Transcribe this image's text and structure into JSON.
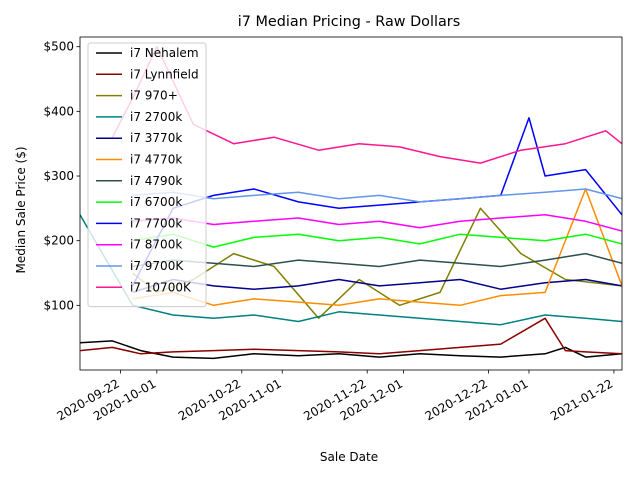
{
  "chart_data": {
    "type": "line",
    "title": "i7 Median Pricing - Raw Dollars",
    "xlabel": "Sale Date",
    "ylabel": "Median Sale Price ($)",
    "x_tick_labels": [
      "2020-09-22",
      "2020-10-01",
      "2020-10-22",
      "2020-11-01",
      "2020-11-22",
      "2020-12-01",
      "2020-12-22",
      "2021-01-01",
      "2021-01-22"
    ],
    "x_tick_dates": [
      "2020-09-22",
      "2020-10-01",
      "2020-10-22",
      "2020-11-01",
      "2020-11-22",
      "2020-12-01",
      "2020-12-22",
      "2021-01-01",
      "2021-01-22"
    ],
    "xlim": [
      "2020-09-12",
      "2021-01-24"
    ],
    "y_tick_labels": [
      "$100",
      "$200",
      "$300",
      "$400",
      "$500"
    ],
    "y_tick_values": [
      100,
      200,
      300,
      400,
      500
    ],
    "ylim": [
      0,
      515
    ],
    "grid": false,
    "legend_position": "upper-left",
    "series": [
      {
        "name": "i7 Nehalem",
        "color": "#000000",
        "x": [
          "2020-09-12",
          "2020-09-20",
          "2020-09-27",
          "2020-10-05",
          "2020-10-15",
          "2020-10-25",
          "2020-11-05",
          "2020-11-15",
          "2020-11-25",
          "2020-12-05",
          "2020-12-15",
          "2020-12-25",
          "2021-01-05",
          "2021-01-10",
          "2021-01-15",
          "2021-01-24"
        ],
        "values": [
          42,
          45,
          30,
          20,
          18,
          25,
          22,
          25,
          20,
          25,
          22,
          20,
          25,
          35,
          20,
          25
        ]
      },
      {
        "name": "i7 Lynnfield",
        "color": "#8b0000",
        "x": [
          "2020-09-12",
          "2020-09-20",
          "2020-09-27",
          "2020-10-05",
          "2020-10-15",
          "2020-10-25",
          "2020-11-05",
          "2020-11-15",
          "2020-11-25",
          "2020-12-05",
          "2020-12-15",
          "2020-12-25",
          "2021-01-05",
          "2021-01-10",
          "2021-01-15",
          "2021-01-24"
        ],
        "values": [
          30,
          35,
          25,
          28,
          30,
          32,
          30,
          28,
          25,
          30,
          35,
          40,
          80,
          30,
          28,
          25
        ]
      },
      {
        "name": "i7 970+",
        "color": "#808000",
        "x": [
          "2020-09-25",
          "2020-10-01",
          "2020-10-10",
          "2020-10-20",
          "2020-10-30",
          "2020-11-10",
          "2020-11-20",
          "2020-11-30",
          "2020-12-10",
          "2020-12-20",
          "2020-12-30",
          "2021-01-10",
          "2021-01-24"
        ],
        "values": [
          150,
          120,
          140,
          180,
          160,
          80,
          140,
          100,
          120,
          250,
          180,
          140,
          130
        ]
      },
      {
        "name": "i7 2700k",
        "color": "#008080",
        "x": [
          "2020-09-12",
          "2020-09-25",
          "2020-10-05",
          "2020-10-15",
          "2020-10-25",
          "2020-11-05",
          "2020-11-15",
          "2020-11-25",
          "2020-12-05",
          "2020-12-15",
          "2020-12-25",
          "2021-01-05",
          "2021-01-15",
          "2021-01-24"
        ],
        "values": [
          240,
          100,
          85,
          80,
          85,
          75,
          90,
          85,
          80,
          75,
          70,
          85,
          80,
          75
        ]
      },
      {
        "name": "i7 3770k",
        "color": "#00008b",
        "x": [
          "2020-09-25",
          "2020-10-05",
          "2020-10-15",
          "2020-10-25",
          "2020-11-05",
          "2020-11-15",
          "2020-11-25",
          "2020-12-05",
          "2020-12-15",
          "2020-12-25",
          "2021-01-05",
          "2021-01-15",
          "2021-01-24"
        ],
        "values": [
          120,
          140,
          130,
          125,
          130,
          140,
          130,
          135,
          140,
          125,
          135,
          140,
          130
        ]
      },
      {
        "name": "i7 4770k",
        "color": "#ff8c00",
        "x": [
          "2020-09-25",
          "2020-10-05",
          "2020-10-15",
          "2020-10-25",
          "2020-11-05",
          "2020-11-15",
          "2020-11-25",
          "2020-12-05",
          "2020-12-15",
          "2020-12-25",
          "2021-01-05",
          "2021-01-15",
          "2021-01-24"
        ],
        "values": [
          110,
          120,
          100,
          110,
          105,
          100,
          110,
          105,
          100,
          115,
          120,
          280,
          130
        ]
      },
      {
        "name": "i7 4790k",
        "color": "#2f4f4f",
        "x": [
          "2020-09-25",
          "2020-10-05",
          "2020-10-15",
          "2020-10-25",
          "2020-11-05",
          "2020-11-15",
          "2020-11-25",
          "2020-12-05",
          "2020-12-15",
          "2020-12-25",
          "2021-01-05",
          "2021-01-15",
          "2021-01-24"
        ],
        "values": [
          160,
          170,
          165,
          160,
          170,
          165,
          160,
          170,
          165,
          160,
          170,
          180,
          165
        ]
      },
      {
        "name": "i7 6700k",
        "color": "#00ff00",
        "x": [
          "2020-09-25",
          "2020-10-05",
          "2020-10-15",
          "2020-10-25",
          "2020-11-05",
          "2020-11-15",
          "2020-11-25",
          "2020-12-05",
          "2020-12-15",
          "2020-12-25",
          "2021-01-05",
          "2021-01-15",
          "2021-01-24"
        ],
        "values": [
          200,
          210,
          190,
          205,
          210,
          200,
          205,
          195,
          210,
          205,
          200,
          210,
          195
        ]
      },
      {
        "name": "i7 7700k",
        "color": "#0000ff",
        "x": [
          "2020-09-25",
          "2020-10-05",
          "2020-10-15",
          "2020-10-25",
          "2020-11-05",
          "2020-11-15",
          "2020-11-25",
          "2020-12-05",
          "2020-12-15",
          "2020-12-25",
          "2021-01-01",
          "2021-01-05",
          "2021-01-15",
          "2021-01-24"
        ],
        "values": [
          130,
          250,
          270,
          280,
          260,
          250,
          255,
          260,
          265,
          270,
          390,
          300,
          310,
          240
        ]
      },
      {
        "name": "i7 8700k",
        "color": "#ff00ff",
        "x": [
          "2020-09-25",
          "2020-10-05",
          "2020-10-15",
          "2020-10-25",
          "2020-11-05",
          "2020-11-15",
          "2020-11-25",
          "2020-12-05",
          "2020-12-15",
          "2020-12-25",
          "2021-01-05",
          "2021-01-15",
          "2021-01-24"
        ],
        "values": [
          230,
          235,
          225,
          230,
          235,
          225,
          230,
          220,
          230,
          235,
          240,
          230,
          215
        ]
      },
      {
        "name": "i7 9700K",
        "color": "#6495ed",
        "x": [
          "2020-09-25",
          "2020-10-05",
          "2020-10-15",
          "2020-10-25",
          "2020-11-05",
          "2020-11-15",
          "2020-11-25",
          "2020-12-05",
          "2020-12-15",
          "2020-12-25",
          "2021-01-05",
          "2021-01-15",
          "2021-01-24"
        ],
        "values": [
          270,
          275,
          265,
          270,
          275,
          265,
          270,
          260,
          265,
          270,
          275,
          280,
          265
        ]
      },
      {
        "name": "i7 10700K",
        "color": "#ff1493",
        "x": [
          "2020-09-20",
          "2020-09-25",
          "2020-10-01",
          "2020-10-10",
          "2020-10-20",
          "2020-10-30",
          "2020-11-10",
          "2020-11-20",
          "2020-11-30",
          "2020-12-10",
          "2020-12-20",
          "2020-12-30",
          "2021-01-10",
          "2021-01-20",
          "2021-01-24"
        ],
        "values": [
          360,
          420,
          500,
          380,
          350,
          360,
          340,
          350,
          345,
          330,
          320,
          340,
          350,
          370,
          350
        ]
      }
    ]
  }
}
